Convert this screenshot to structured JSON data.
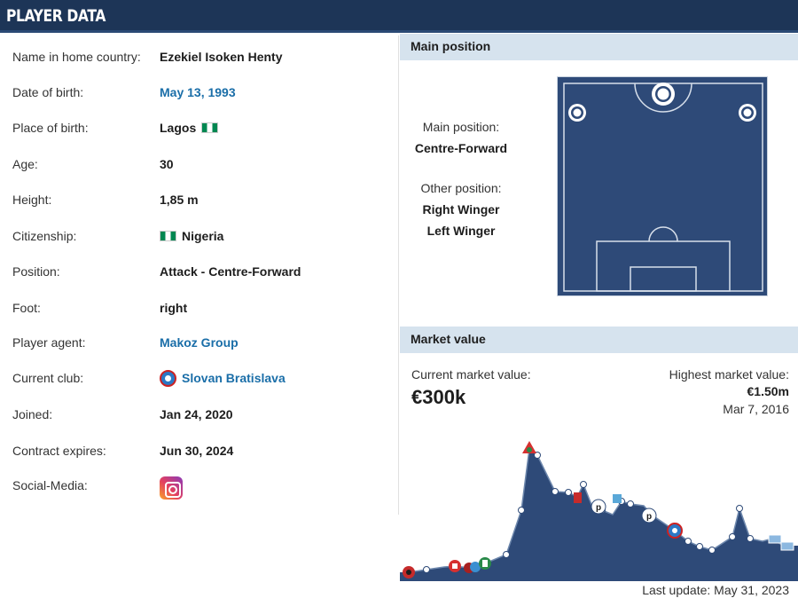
{
  "header": {
    "title": "PLAYER DATA"
  },
  "player": {
    "rows": [
      {
        "label": "Name in home country:",
        "value": "Ezekiel Isoken Henty"
      },
      {
        "label": "Date of birth:",
        "value": "May 13, 1993"
      },
      {
        "label": "Place of birth:",
        "value": "Lagos"
      },
      {
        "label": "Age:",
        "value": "30"
      },
      {
        "label": "Height:",
        "value": "1,85 m"
      },
      {
        "label": "Citizenship:",
        "value": "Nigeria"
      },
      {
        "label": "Position:",
        "value": "Attack - Centre-Forward"
      },
      {
        "label": "Foot:",
        "value": "right"
      },
      {
        "label": "Player agent:",
        "value": "Makoz Group"
      },
      {
        "label": "Current club:",
        "value": "Slovan Bratislava"
      },
      {
        "label": "Joined:",
        "value": "Jan 24, 2020"
      },
      {
        "label": "Contract expires:",
        "value": "Jun 30, 2024"
      },
      {
        "label": "Social-Media:",
        "value": ""
      }
    ]
  },
  "main_position": {
    "section_title": "Main position",
    "main_label": "Main position:",
    "main_value": "Centre-Forward",
    "other_label": "Other position:",
    "other_values": [
      "Right Winger",
      "Left Winger"
    ]
  },
  "market_value": {
    "section_title": "Market value",
    "current_label": "Current market value:",
    "current_value": "€300k",
    "highest_label": "Highest market value:",
    "highest_value": "€1.50m",
    "highest_date": "Mar 7, 2016",
    "last_update": "Last update: May 31, 2023"
  },
  "colors": {
    "header": "#1d3557",
    "section": "#d6e3ee",
    "link": "#1a6ea8",
    "pitch": "#2e4a78",
    "area": "#2e4a78"
  }
}
